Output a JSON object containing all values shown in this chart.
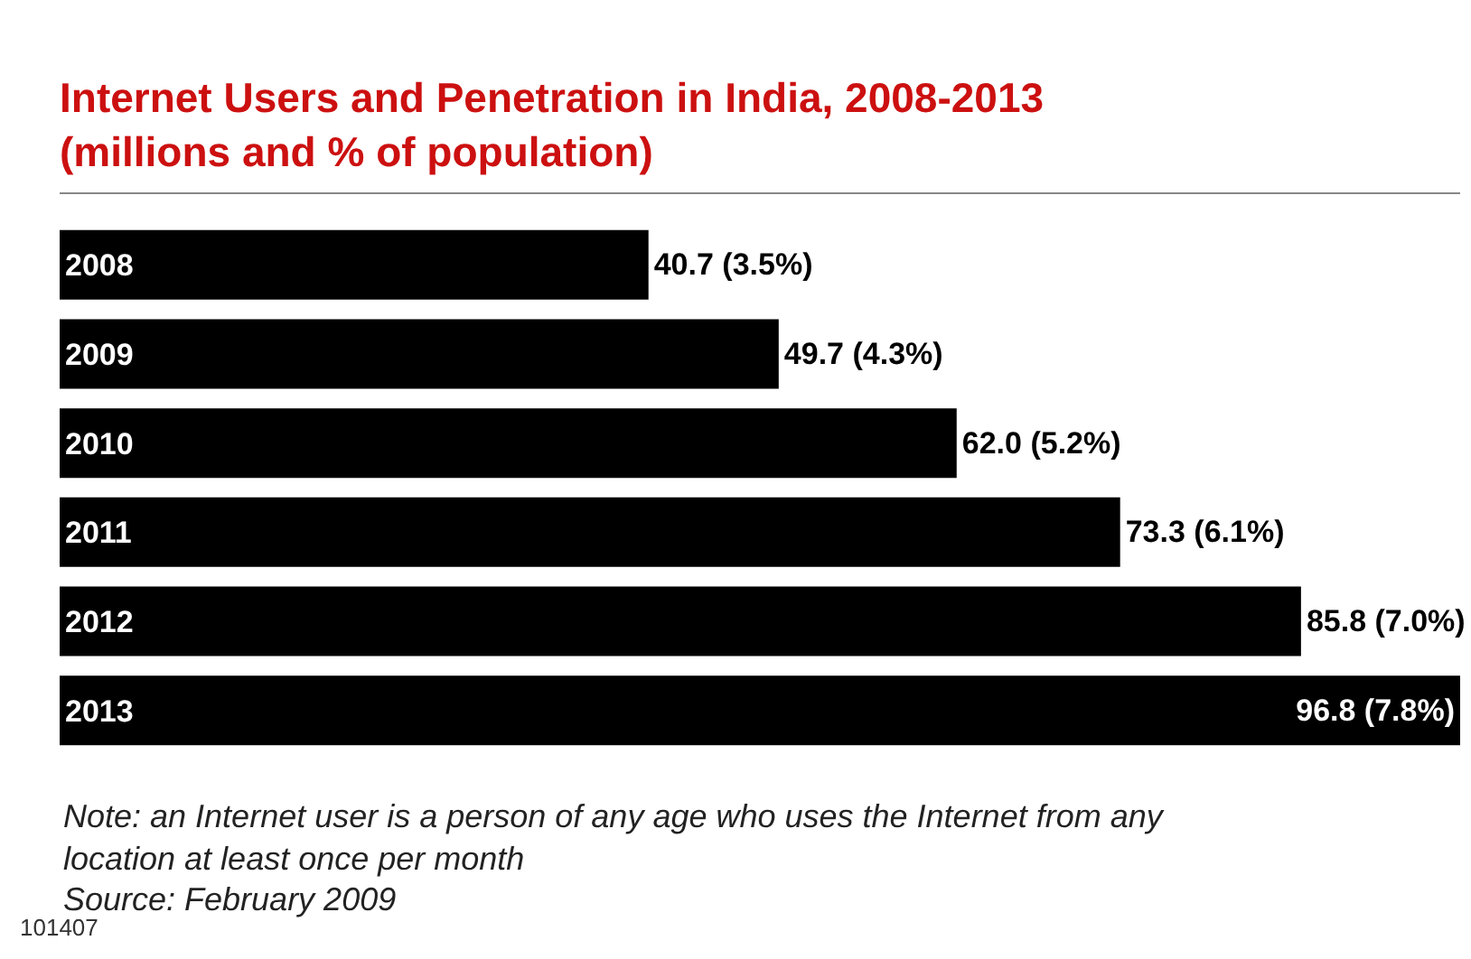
{
  "chart_data": {
    "type": "bar",
    "orientation": "horizontal",
    "title": "Internet Users and Penetration in India, 2008-2013 (millions and % of population)",
    "categories": [
      "2008",
      "2009",
      "2010",
      "2011",
      "2012",
      "2013"
    ],
    "values": [
      40.7,
      49.7,
      62.0,
      73.3,
      85.8,
      96.8
    ],
    "value_labels": [
      "40.7 (3.5%)",
      "49.7 (4.3%)",
      "62.0 (5.2%)",
      "73.3 (6.1%)",
      "85.8 (7.0%)",
      "96.8 (7.8%)"
    ],
    "color": "#000000",
    "legend": false,
    "annotations": [
      "Note: an Internet user is a person of any age who uses the Internet from any location at least once per month",
      "Source: February 2009",
      "101407"
    ]
  }
}
